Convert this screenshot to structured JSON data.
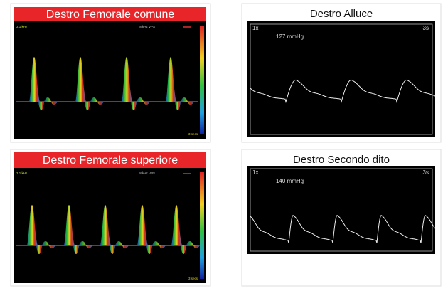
{
  "spectral_panels": [
    {
      "title": "Destro Femorale comune",
      "scale_label": "3.1 kHz",
      "info_label": "8 kHz VPS",
      "time_label": "3 secs"
    },
    {
      "title": "Destro Femorale superiore",
      "scale_label": "3.1 kHz",
      "info_label": "8 kHz VPS",
      "time_label": "3 secs"
    }
  ],
  "pvr_panels": [
    {
      "title": "Destro Alluce",
      "gain": "1x",
      "sweep": "3s",
      "pressure": "127 mmHg"
    },
    {
      "title": "Destro Secondo dito",
      "gain": "1x",
      "sweep": "3s",
      "pressure": "140 mmHg"
    }
  ]
}
